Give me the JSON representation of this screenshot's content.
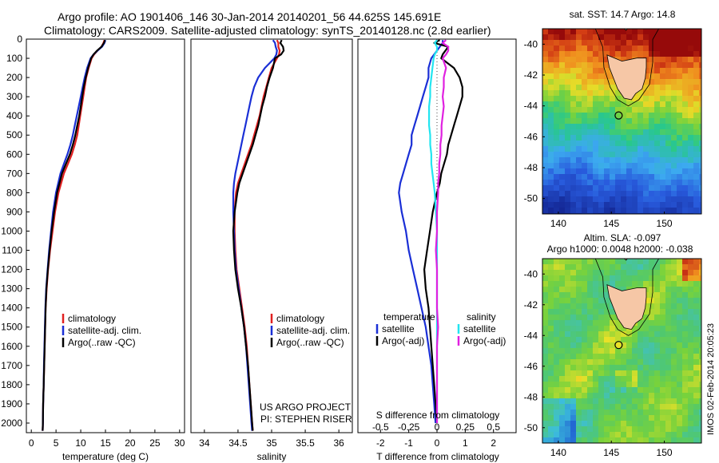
{
  "header": {
    "line1": "Argo profile: AO 1901406_146 30-Jan-2014 20140201_56 44.625S 145.691E",
    "line2": "Climatology: CARS2009. Satellite-adjusted climatology: synTS_20140128.nc (2.8d earlier)"
  },
  "footer": {
    "project": "US ARGO PROJECT",
    "pi": "PI: STEPHEN RISER",
    "credit": "IMOS 02-Feb-2014 20:05:23"
  },
  "colors": {
    "climatology": "#e02020",
    "satellite": "#1a2fd6",
    "argo": "#000000",
    "sat_salinity": "#22e5f0",
    "argo_salinity": "#e020e0",
    "land": "#f6c7a6"
  },
  "depth_axis": {
    "ticks": [
      0,
      100,
      200,
      300,
      400,
      500,
      600,
      700,
      800,
      900,
      1000,
      1100,
      1200,
      1300,
      1400,
      1500,
      1600,
      1700,
      1800,
      1900,
      2000
    ],
    "range": [
      0,
      2050
    ]
  },
  "chart_data": [
    {
      "type": "line",
      "panel": "temperature",
      "xlabel": "temperature (deg C)",
      "xlim": [
        -1,
        31
      ],
      "xticks": [
        0,
        5,
        10,
        15,
        20,
        25,
        30
      ],
      "ylim": [
        2050,
        0
      ],
      "legend_position": "middle-left",
      "depth": [
        5,
        20,
        40,
        60,
        80,
        100,
        150,
        200,
        250,
        300,
        350,
        400,
        450,
        500,
        550,
        600,
        650,
        700,
        800,
        900,
        1000,
        1100,
        1200,
        1300,
        1400,
        1500,
        1600,
        1700,
        1800,
        1900,
        2000,
        2040
      ],
      "series": [
        {
          "name": "climatology",
          "values": [
            14.8,
            14.6,
            14.2,
            13.4,
            12.7,
            12.2,
            11.6,
            11.1,
            10.8,
            10.5,
            10.2,
            9.9,
            9.6,
            9.3,
            8.8,
            8.2,
            7.4,
            6.6,
            5.5,
            4.8,
            4.3,
            3.8,
            3.4,
            3.1,
            2.9,
            2.8,
            2.7,
            2.6,
            2.5,
            2.4,
            2.35,
            2.3
          ]
        },
        {
          "name": "satellite-adj. clim.",
          "values": [
            15.0,
            14.8,
            14.3,
            13.4,
            12.6,
            12.0,
            11.3,
            10.8,
            10.4,
            10.0,
            9.6,
            9.2,
            8.8,
            8.4,
            7.9,
            7.3,
            6.6,
            5.9,
            5.0,
            4.4,
            4.0,
            3.6,
            3.3,
            3.0,
            2.85,
            2.75,
            2.65,
            2.55,
            2.5,
            2.4,
            2.35,
            2.3
          ]
        },
        {
          "name": "Argo(..raw -QC)",
          "values": [
            14.9,
            14.7,
            14.2,
            13.3,
            12.6,
            12.1,
            11.5,
            11.0,
            10.6,
            10.3,
            10.0,
            9.7,
            9.3,
            8.9,
            8.4,
            7.8,
            7.0,
            6.2,
            5.2,
            4.6,
            4.1,
            3.7,
            3.35,
            3.05,
            2.9,
            2.8,
            2.7,
            2.6,
            2.5,
            2.4,
            2.35,
            2.3
          ]
        }
      ]
    },
    {
      "type": "line",
      "panel": "salinity",
      "xlabel": "salinity",
      "xlim": [
        33.8,
        36.2
      ],
      "xticks": [
        34,
        34.5,
        35,
        35.5,
        36
      ],
      "ylim": [
        2050,
        0
      ],
      "legend_position": "middle-left",
      "depth": [
        5,
        20,
        40,
        60,
        80,
        100,
        150,
        200,
        250,
        300,
        350,
        400,
        450,
        500,
        550,
        600,
        650,
        700,
        750,
        800,
        900,
        1000,
        1100,
        1200,
        1300,
        1400,
        1500,
        1600,
        1700,
        1800,
        1900,
        2000,
        2040
      ],
      "series": [
        {
          "name": "climatology",
          "values": [
            35.08,
            35.1,
            35.1,
            35.12,
            35.11,
            35.08,
            35.0,
            34.96,
            34.92,
            34.88,
            34.85,
            34.82,
            34.78,
            34.74,
            34.7,
            34.65,
            34.6,
            34.55,
            34.5,
            34.47,
            34.45,
            34.45,
            34.46,
            34.48,
            34.52,
            34.56,
            34.6,
            34.63,
            34.65,
            34.67,
            34.69,
            34.71,
            34.72
          ]
        },
        {
          "name": "satellite-adj. clim.",
          "values": [
            35.02,
            35.05,
            35.06,
            35.08,
            35.07,
            35.04,
            34.9,
            34.8,
            34.74,
            34.7,
            34.67,
            34.64,
            34.61,
            34.58,
            34.55,
            34.52,
            34.49,
            34.46,
            34.44,
            34.43,
            34.43,
            34.44,
            34.45,
            34.47,
            34.51,
            34.55,
            34.59,
            34.62,
            34.64,
            34.66,
            34.68,
            34.7,
            34.71
          ]
        },
        {
          "name": "Argo(..raw -QC)",
          "values": [
            35.15,
            35.13,
            35.17,
            35.18,
            35.14,
            35.05,
            35.02,
            34.97,
            34.93,
            34.9,
            34.86,
            34.83,
            34.8,
            34.76,
            34.72,
            34.67,
            34.62,
            34.57,
            34.52,
            34.49,
            34.45,
            34.43,
            34.44,
            34.46,
            34.5,
            34.55,
            34.59,
            34.62,
            34.65,
            34.67,
            34.69,
            34.71,
            34.72
          ]
        }
      ]
    },
    {
      "type": "line",
      "panel": "difference",
      "xlabel": "T difference from climatology",
      "top_label": "S difference from climatology",
      "xlim": [
        -2.8,
        2.8
      ],
      "xticks": [
        -2,
        -1,
        0,
        1,
        2
      ],
      "top_ticks": [
        "-0.5",
        "-0.25",
        "0",
        "0.25",
        "0.5"
      ],
      "ylim": [
        2050,
        0
      ],
      "legend_groups": [
        "temperature",
        "salinity"
      ],
      "depth": [
        5,
        20,
        40,
        60,
        80,
        100,
        150,
        200,
        250,
        300,
        350,
        400,
        450,
        500,
        550,
        600,
        650,
        700,
        750,
        800,
        900,
        1000,
        1100,
        1200,
        1300,
        1400,
        1500,
        1600,
        1700,
        1800,
        1900,
        2000
      ],
      "series": [
        {
          "name": "satellite",
          "group": "temperature",
          "values": [
            0.2,
            0.2,
            0.1,
            0.0,
            -0.1,
            -0.2,
            -0.3,
            -0.3,
            -0.4,
            -0.5,
            -0.6,
            -0.7,
            -0.8,
            -0.9,
            -0.9,
            -1.0,
            -1.1,
            -1.2,
            -1.3,
            -1.35,
            -1.25,
            -1.1,
            -1.0,
            -0.85,
            -0.7,
            -0.55,
            -0.4,
            -0.3,
            -0.2,
            -0.15,
            -0.1,
            -0.05
          ]
        },
        {
          "name": "Argo(-adj)",
          "group": "temperature",
          "values": [
            0.1,
            -0.1,
            0.4,
            0.3,
            0.2,
            0.15,
            0.6,
            0.8,
            0.9,
            0.9,
            0.8,
            0.7,
            0.6,
            0.5,
            0.4,
            0.35,
            0.25,
            0.15,
            0.1,
            0.0,
            -0.15,
            -0.25,
            -0.35,
            -0.45,
            -0.4,
            -0.3,
            -0.25,
            -0.2,
            -0.15,
            -0.1,
            -0.05,
            0.0
          ]
        },
        {
          "name": "satellite",
          "group": "salinity",
          "values": [
            0.0,
            -0.02,
            0.0,
            0.0,
            -0.02,
            -0.03,
            -0.04,
            -0.05,
            -0.06,
            -0.06,
            -0.07,
            -0.07,
            -0.07,
            -0.06,
            -0.06,
            -0.05,
            -0.05,
            -0.04,
            -0.03,
            -0.02,
            -0.01,
            0.0,
            0.0,
            0.0,
            0.0,
            0.0,
            0.0,
            0.0,
            0.0,
            0.0,
            0.0,
            0.0
          ]
        },
        {
          "name": "Argo(-adj)",
          "group": "salinity",
          "values": [
            0.08,
            0.05,
            0.1,
            0.1,
            0.08,
            0.05,
            0.08,
            0.06,
            0.06,
            0.05,
            0.06,
            0.05,
            0.04,
            0.04,
            0.03,
            0.03,
            0.02,
            0.02,
            0.01,
            0.01,
            0.0,
            0.0,
            -0.01,
            0.0,
            0.0,
            0.0,
            0.01,
            0.0,
            0.0,
            0.0,
            0.0,
            0.0
          ]
        }
      ]
    },
    {
      "type": "heatmap",
      "panel": "sst-map",
      "title": "sat. SST: 14.7 Argo: 14.8",
      "xticks": [
        140,
        145,
        150
      ],
      "yticks": [
        -40,
        -42,
        -44,
        -46,
        -48,
        -50
      ],
      "xlim": [
        138.5,
        153.5
      ],
      "ylim": [
        -51,
        -39
      ],
      "marker": {
        "lon": 145.69,
        "lat": -44.62
      }
    },
    {
      "type": "heatmap",
      "panel": "sla-map",
      "title": "Altim. SLA: -0.097",
      "subtitle": "Argo h1000: 0.0048 h2000: -0.038",
      "xticks": [
        140,
        145,
        150
      ],
      "yticks": [
        -40,
        -42,
        -44,
        -46,
        -48,
        -50
      ],
      "xlim": [
        138.5,
        153.5
      ],
      "ylim": [
        -51,
        -39
      ],
      "marker": {
        "lon": 145.69,
        "lat": -44.62
      }
    }
  ]
}
